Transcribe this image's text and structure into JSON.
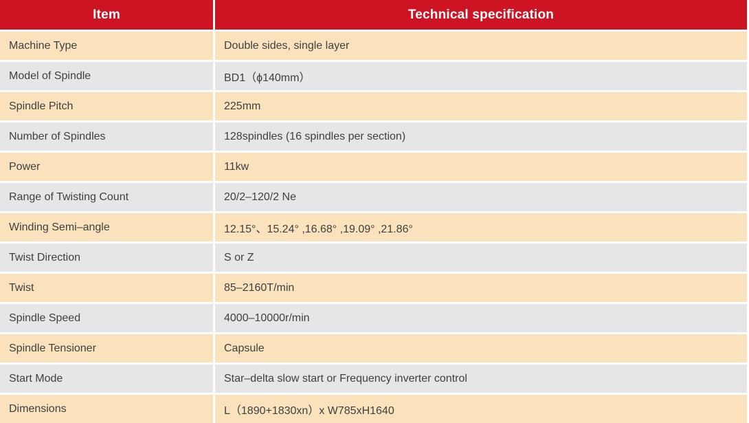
{
  "table": {
    "columns": {
      "item_header": "Item",
      "spec_header": "Technical specification"
    },
    "rows": [
      {
        "item": "Machine Type",
        "spec": "Double sides, single layer"
      },
      {
        "item": "Model of Spindle",
        "spec": "BD1（ϕ140mm）"
      },
      {
        "item": "Spindle Pitch",
        "spec": "225mm"
      },
      {
        "item": "Number of Spindles",
        "spec": "128spindles (16 spindles per section)"
      },
      {
        "item": "Power",
        "spec": "11kw"
      },
      {
        "item": "Range of Twisting Count",
        "spec": "20/2–120/2 Ne"
      },
      {
        "item": "Winding Semi–angle",
        "spec": "12.15°、15.24° ,16.68° ,19.09° ,21.86°"
      },
      {
        "item": "Twist Direction",
        "spec": "S or Z"
      },
      {
        "item": "Twist",
        "spec": "85–2160T/min"
      },
      {
        "item": "Spindle Speed",
        "spec": "4000–10000r/min"
      },
      {
        "item": "Spindle Tensioner",
        "spec": "Capsule"
      },
      {
        "item": "Start Mode",
        "spec": "Star–delta slow start or Frequency inverter control"
      },
      {
        "item": "Dimensions",
        "spec": "L（1890+1830xn）x W785xH1640"
      }
    ],
    "colors": {
      "header_bg": "#CE1423",
      "header_text": "#FFFFFF",
      "row_peach": "#FAE2BD",
      "row_gray": "#E6E6E8",
      "grid_line": "#FFFFFF",
      "body_text": "#3F3F3F"
    }
  }
}
